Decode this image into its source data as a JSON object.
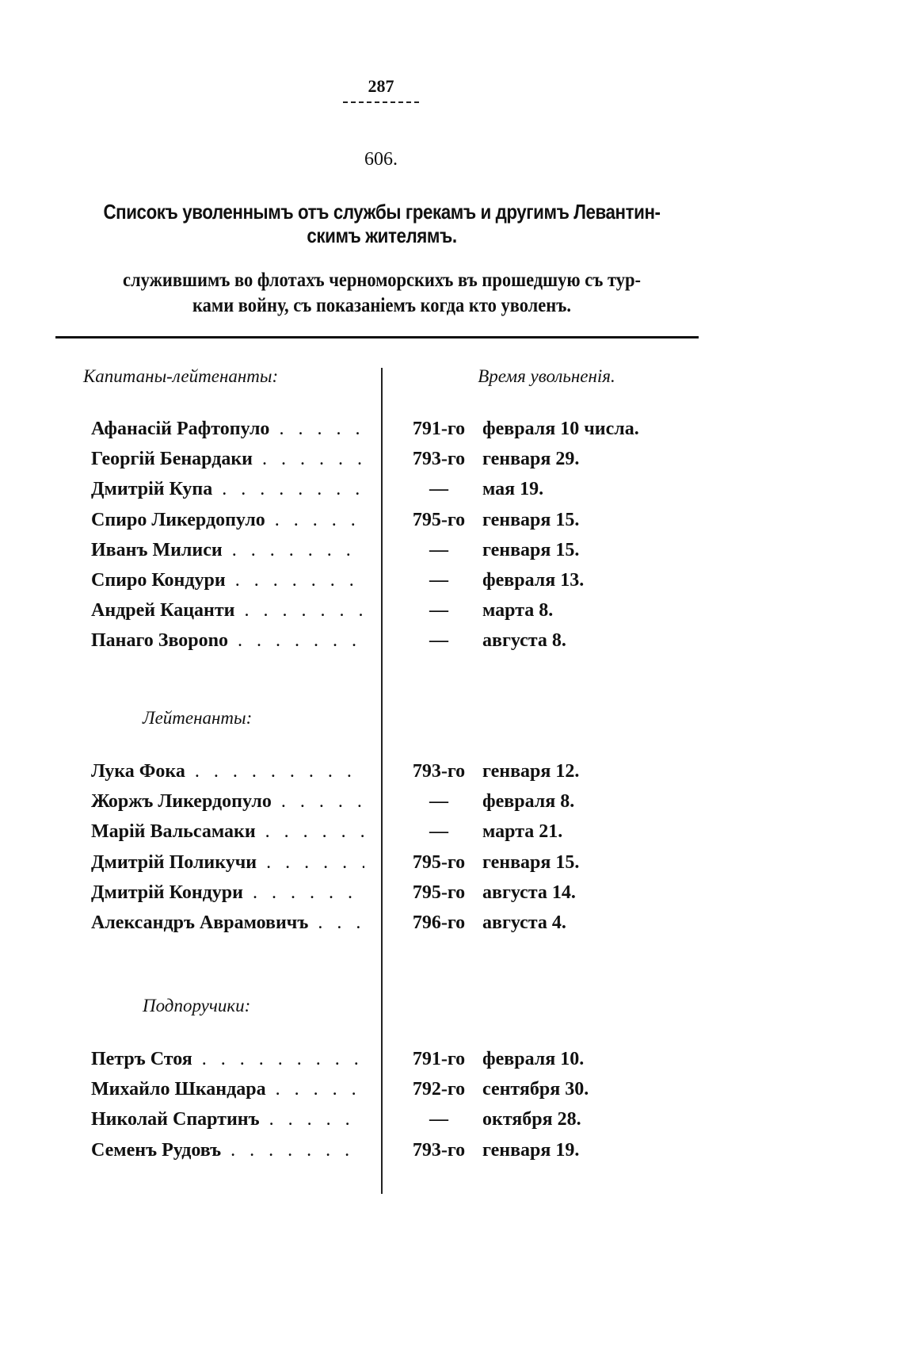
{
  "page_number": "287",
  "document_number": "606.",
  "title": {
    "line1": "Списокъ уволеннымъ отъ службы грекамъ и другимъ Левантин-",
    "line2": "скимъ жителямъ."
  },
  "subtitle": {
    "line1": "служившимъ во флотахъ черноморскихъ въ прошедшую съ тур-",
    "line2": "ками войну, съ показаніемъ когда кто уволенъ."
  },
  "column_headers": {
    "right": "Время увольненія."
  },
  "sections": [
    {
      "heading": "Капитаны-лейтенанты:",
      "rows": [
        {
          "name": "Афанасій Рафтопуло",
          "year": "791-го",
          "date": "февраля 10 числа."
        },
        {
          "name": "Георгій Бенардаки",
          "year": "793-го",
          "date": "генваря 29."
        },
        {
          "name": "Дмитрій Купа",
          "year": "—",
          "date": "мая 19."
        },
        {
          "name": "Спиро Ликердопуло",
          "year": "795-го",
          "date": "генваря 15."
        },
        {
          "name": "Иванъ Милиси",
          "year": "—",
          "date": "генваря 15."
        },
        {
          "name": "Спиро Кондури",
          "year": "—",
          "date": "февраля 13."
        },
        {
          "name": "Андрей Кацанти",
          "year": "—",
          "date": "марта 8."
        },
        {
          "name": "Панаго Зворono",
          "year": "—",
          "date": "августа 8."
        }
      ]
    },
    {
      "heading": "Лейтенанты:",
      "rows": [
        {
          "name": "Лука Фока",
          "year": "793-го",
          "date": "генваря 12."
        },
        {
          "name": "Жоржъ Ликердопуло",
          "year": "—",
          "date": "февраля 8."
        },
        {
          "name": "Марій Вальсамаки",
          "year": "—",
          "date": "марта 21."
        },
        {
          "name": "Дмитрій Поликучи",
          "year": "795-го",
          "date": "генваря 15."
        },
        {
          "name": "Дмитрій Кондури",
          "year": "795-го",
          "date": "августа 14."
        },
        {
          "name": "Александръ Аврамовичъ",
          "year": "796-го",
          "date": "августа 4."
        }
      ]
    },
    {
      "heading": "Подпоручики:",
      "rows": [
        {
          "name": "Петръ Стоя",
          "year": "791-го",
          "date": "февраля 10."
        },
        {
          "name": "Михайло Шкандара",
          "year": "792-го",
          "date": "сентября 30."
        },
        {
          "name": "Николай Спартинъ",
          "year": "—",
          "date": "октября 28."
        },
        {
          "name": "Семенъ Рудовъ",
          "year": "793-го",
          "date": "генваря 19."
        }
      ]
    }
  ]
}
